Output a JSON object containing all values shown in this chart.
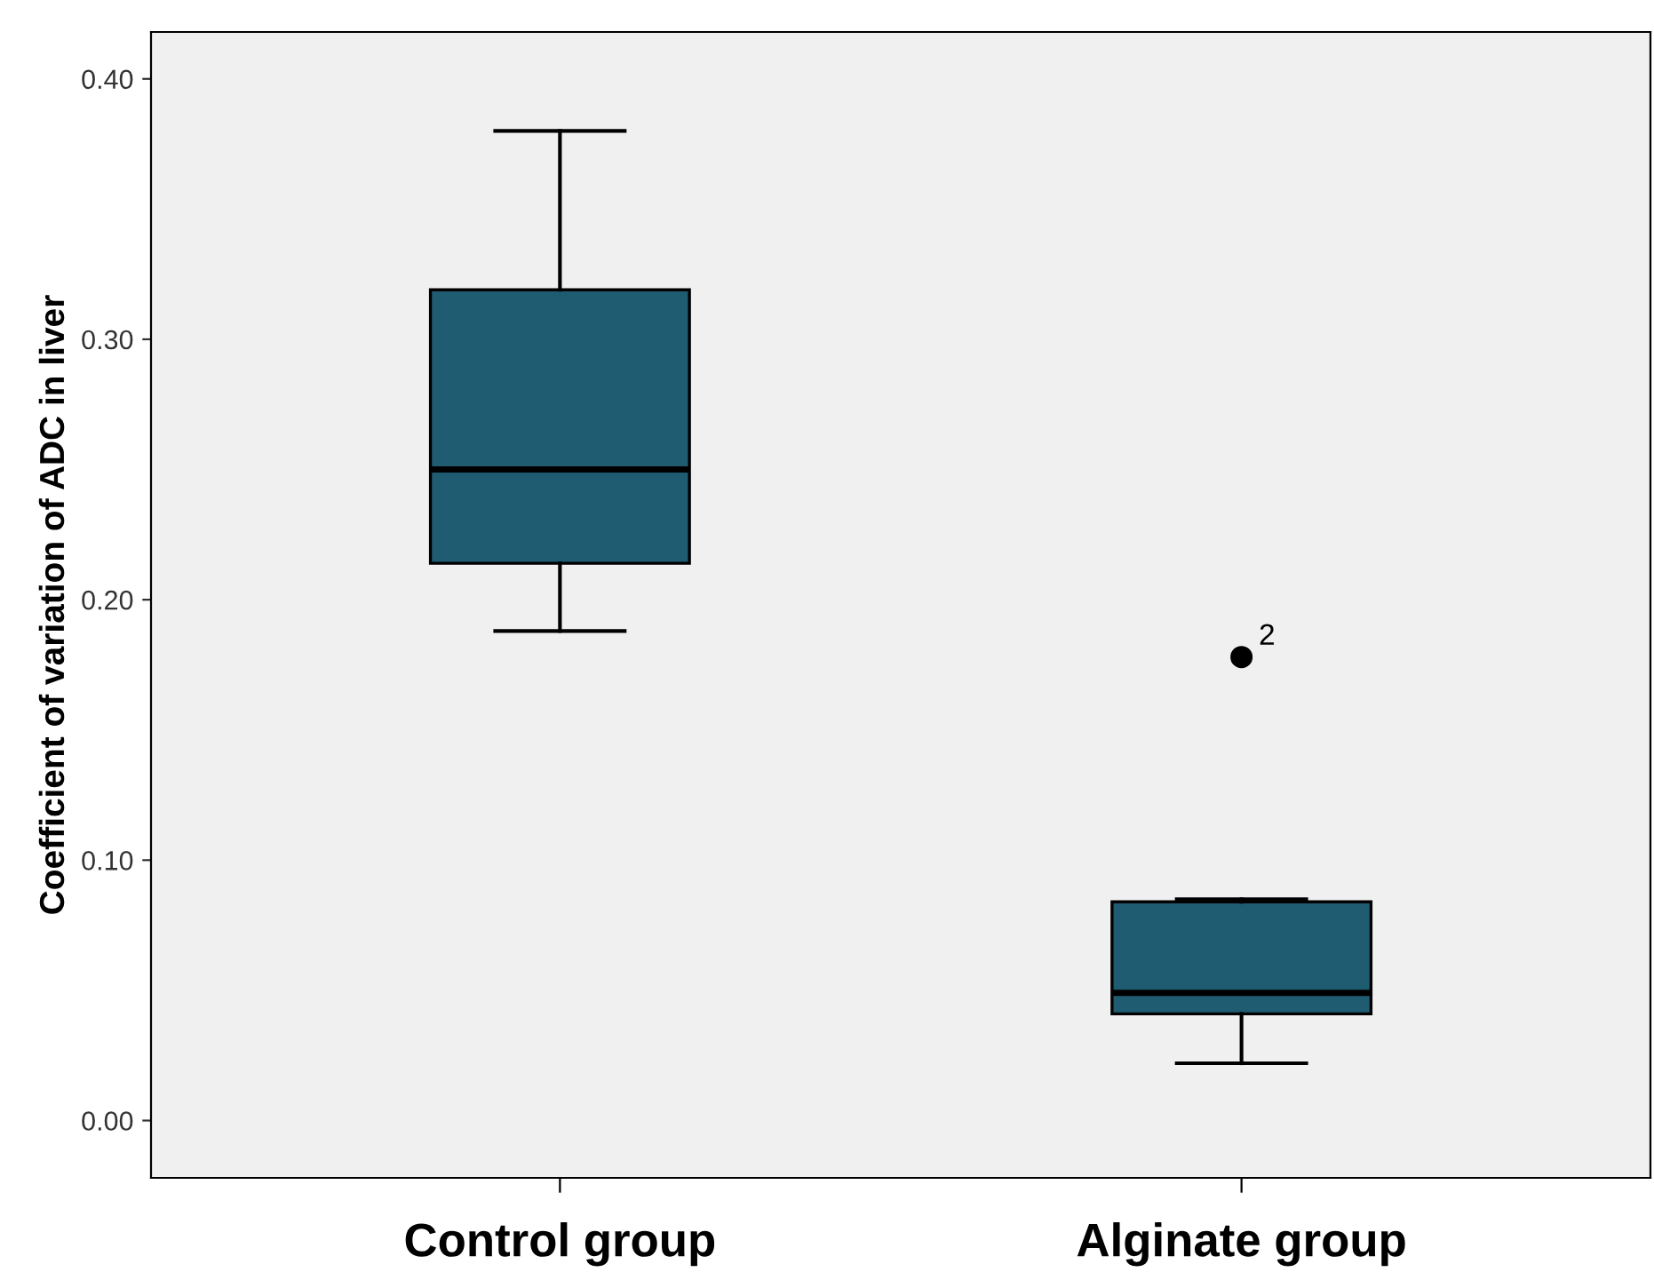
{
  "chart_data": {
    "type": "box",
    "ylabel": "Coefficient of variation of ADC in liver",
    "categories": [
      "Control group",
      "Alginate group"
    ],
    "boxes": [
      {
        "low": 0.188,
        "q1": 0.214,
        "median": 0.25,
        "q3": 0.319,
        "high": 0.38
      },
      {
        "low": 0.022,
        "q1": 0.041,
        "median": 0.049,
        "q3": 0.084,
        "high": 0.085,
        "outliers": [
          0.178
        ]
      }
    ],
    "color": "#1f5c72",
    "ylim": [
      -0.022,
      0.418
    ],
    "yticks": [
      {
        "value": 0,
        "label": "0.00"
      },
      {
        "value": 0.1,
        "label": "0.10"
      },
      {
        "value": 0.2,
        "label": "0.20"
      },
      {
        "value": 0.3,
        "label": "0.30"
      },
      {
        "value": 0.4,
        "label": "0.40"
      }
    ],
    "annotations": [
      "2"
    ],
    "grid": false
  }
}
